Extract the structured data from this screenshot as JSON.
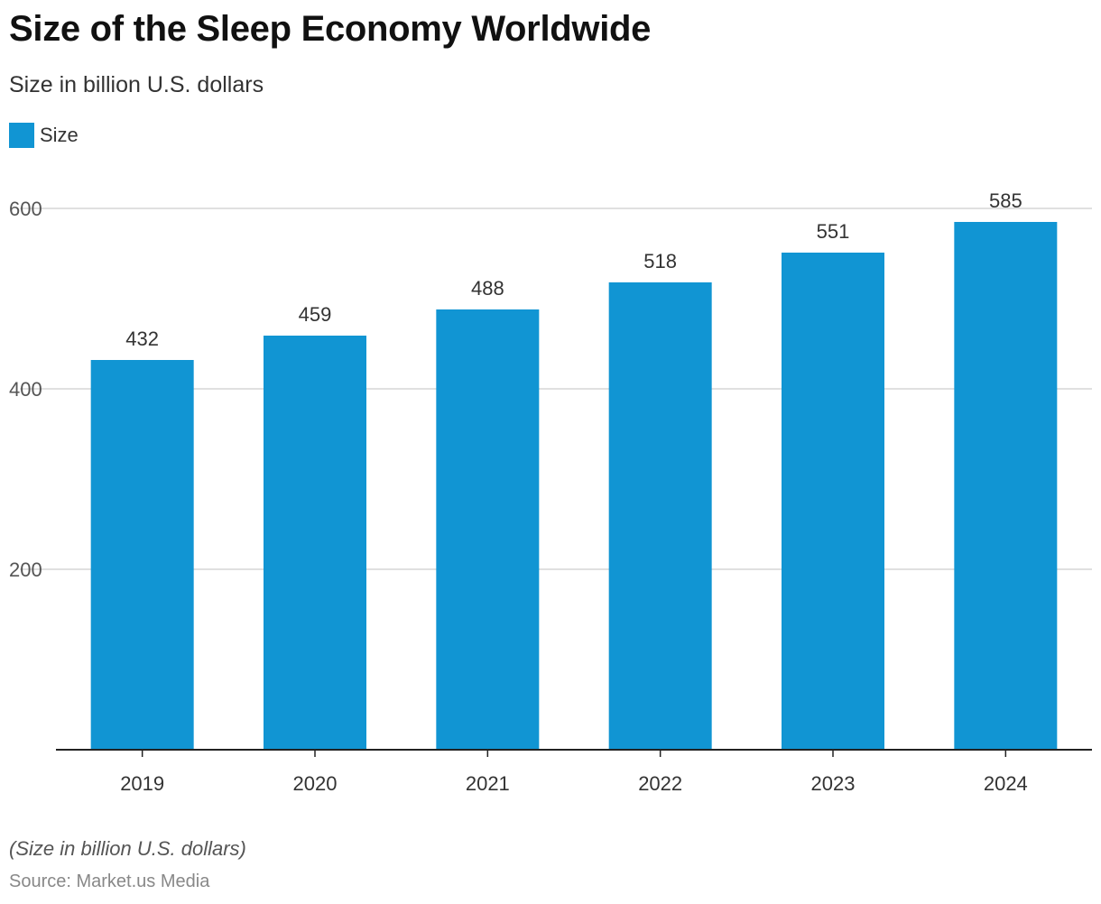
{
  "chart_data": {
    "type": "bar",
    "title": "Size of the Sleep Economy Worldwide",
    "subtitle": "Size in billion U.S. dollars",
    "categories": [
      "2019",
      "2020",
      "2021",
      "2022",
      "2023",
      "2024"
    ],
    "series": [
      {
        "name": "Size",
        "values": [
          432,
          459,
          488,
          518,
          551,
          585
        ],
        "color": "#1195d3"
      }
    ],
    "ylim": [
      0,
      600
    ],
    "yticks": [
      200,
      400,
      600
    ],
    "grid": true,
    "legend": "top-left",
    "data_labels": true
  },
  "footnote": "(Size in billion U.S. dollars)",
  "source": "Source: Market.us Media"
}
